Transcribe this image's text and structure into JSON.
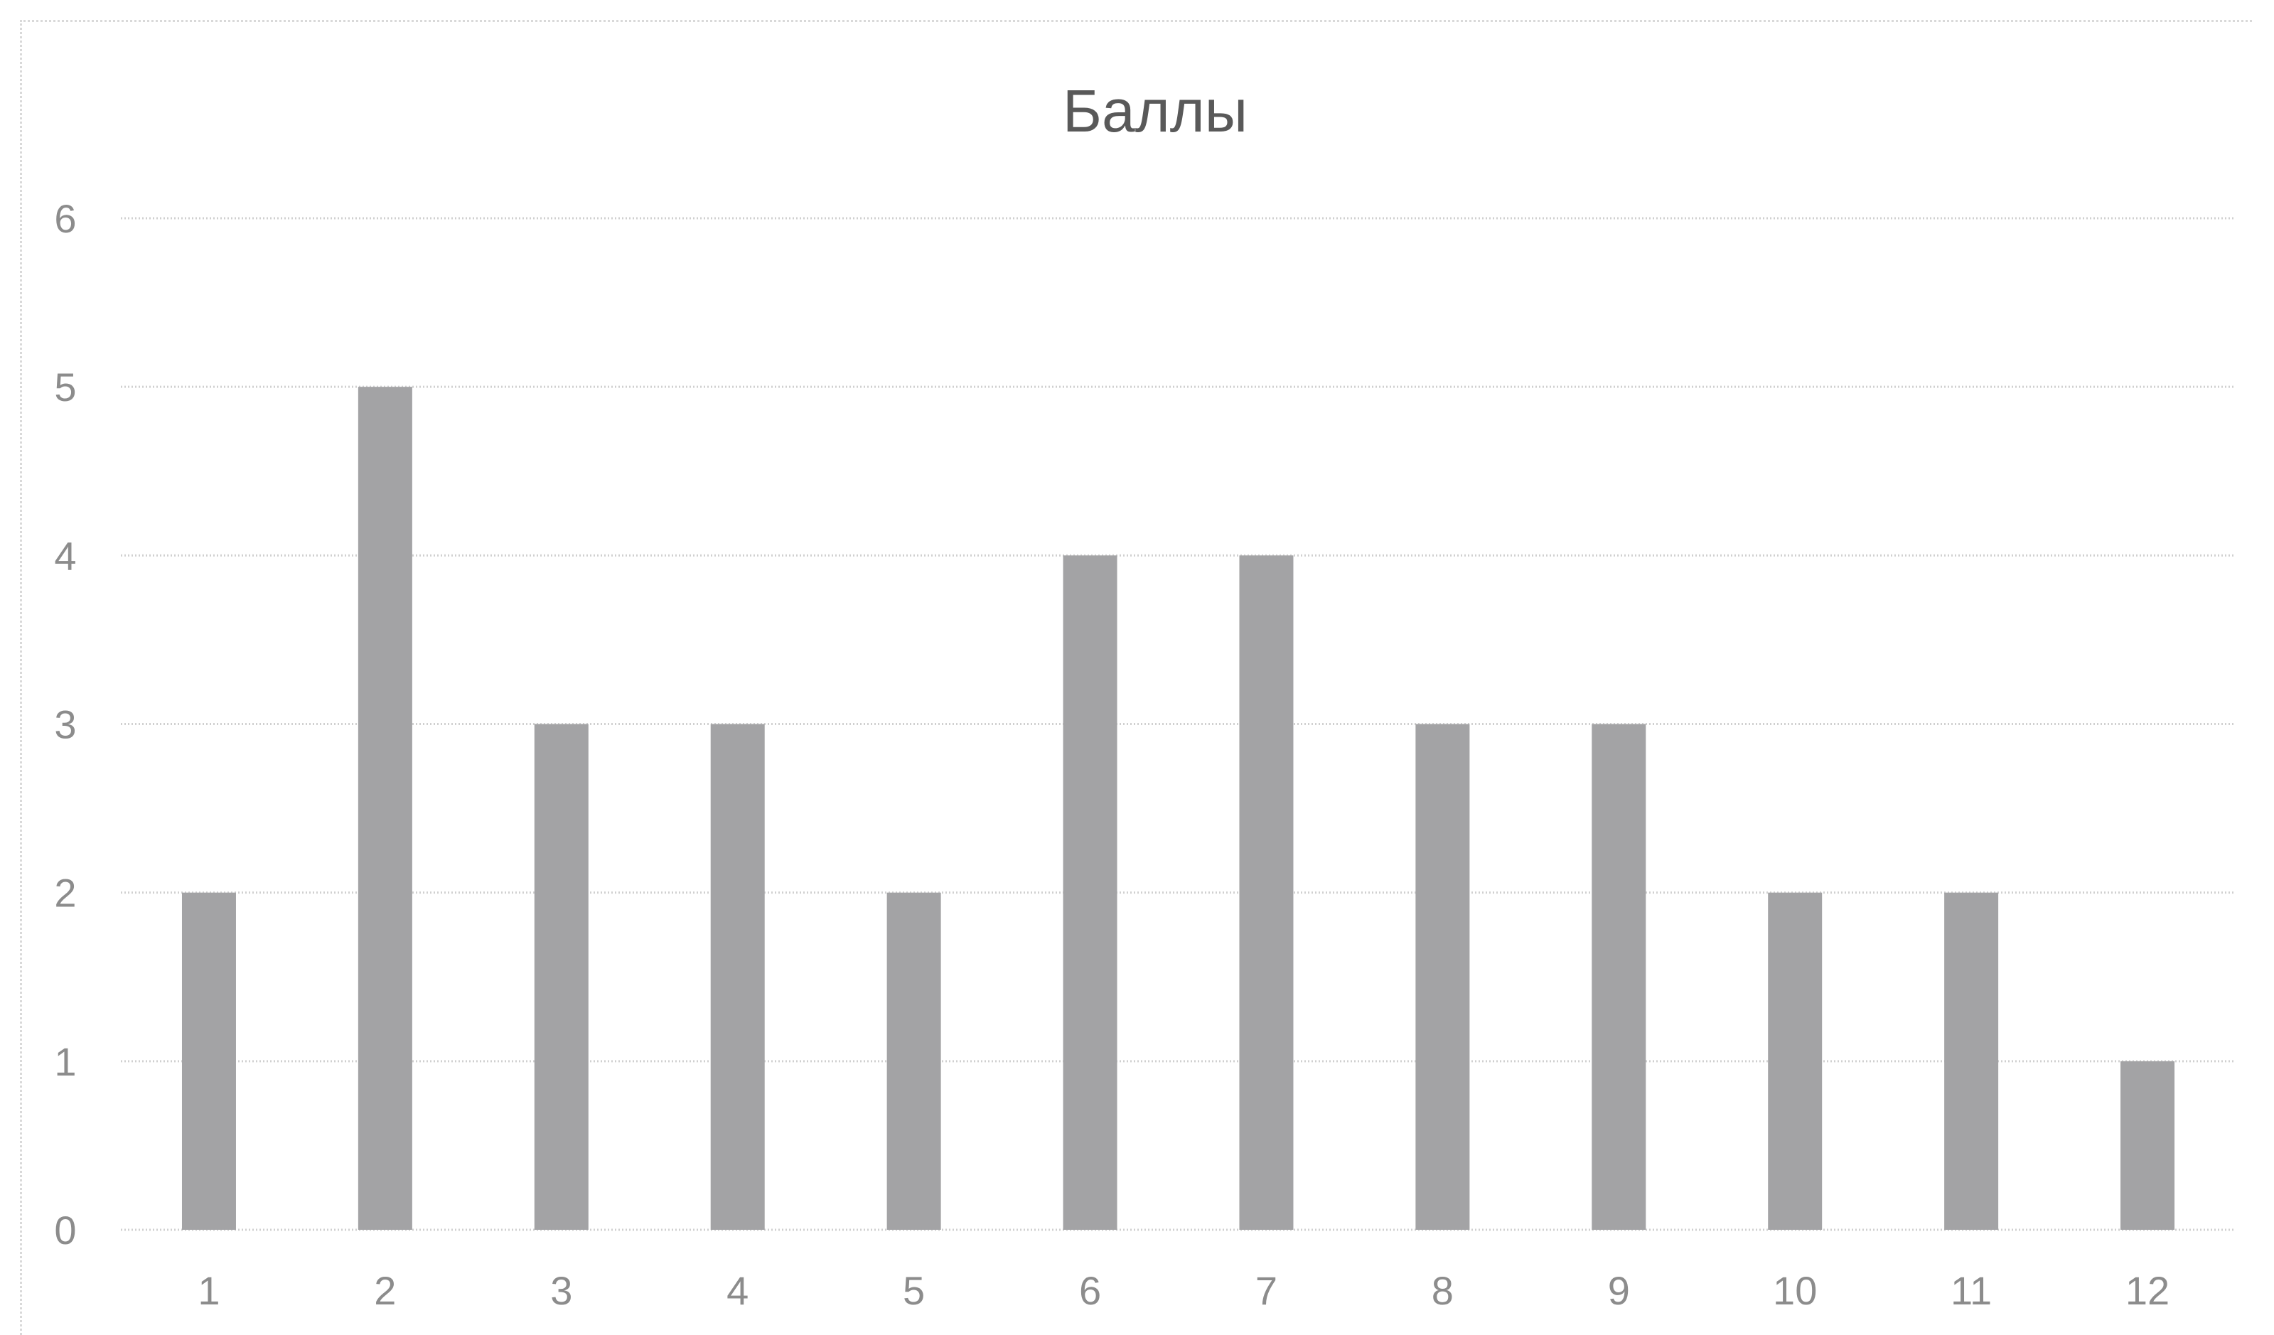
{
  "chart_data": {
    "type": "bar",
    "title": "Баллы",
    "xlabel": "",
    "ylabel": "",
    "categories": [
      "1",
      "2",
      "3",
      "4",
      "5",
      "6",
      "7",
      "8",
      "9",
      "10",
      "11",
      "12"
    ],
    "values": [
      2,
      5,
      3,
      3,
      2,
      4,
      4,
      3,
      3,
      2,
      2,
      1
    ],
    "ylim": [
      0,
      6
    ],
    "yticks": [
      "0",
      "1",
      "2",
      "3",
      "4",
      "5",
      "6"
    ],
    "grid": true,
    "legend": "none",
    "colors": {
      "bar": "#a3a3a5",
      "grid": "#d0d0d0",
      "title": "#595959",
      "tick": "#8c8c8c"
    }
  }
}
